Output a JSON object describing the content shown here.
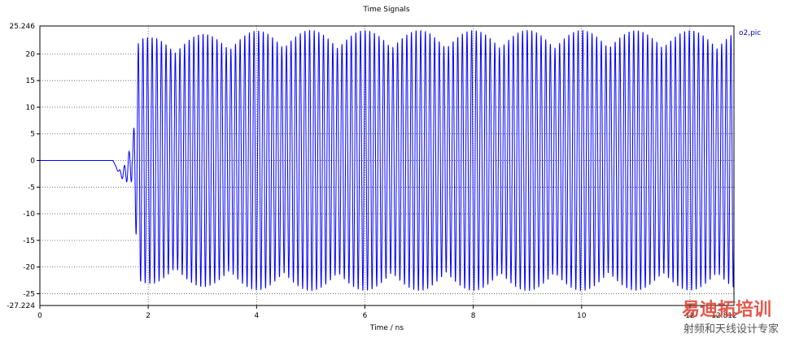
{
  "chart_data": {
    "type": "line",
    "title": "Time Signals",
    "xlabel": "Time / ns",
    "ylabel": "",
    "xlim": [
      0,
      12.812
    ],
    "ylim": [
      -27.224,
      25.246
    ],
    "x_ticks": [
      "0",
      "2",
      "4",
      "6",
      "8",
      "10",
      "12"
    ],
    "x_tick_values": [
      0,
      2,
      4,
      6,
      8,
      10,
      12
    ],
    "x_end_label": "12.812",
    "y_ticks": [
      "20",
      "15",
      "10",
      "5",
      "0",
      "-5",
      "-10",
      "-15",
      "-20",
      "-25"
    ],
    "y_tick_values": [
      20,
      15,
      10,
      5,
      0,
      -5,
      -10,
      -15,
      -20,
      -25
    ],
    "y_top_label": "25.246",
    "y_bottom_label": "-27.224",
    "grid": true,
    "legend_position": "top-right",
    "series": [
      {
        "name": "o2,pic",
        "color": "#0000ff",
        "description_points": {
          "flat_until": 1.35,
          "dip_at": 1.6,
          "onset": 1.7,
          "settled_amplitude": 24.5,
          "envelope_min": 20,
          "end": 12.812
        }
      }
    ]
  },
  "watermark": {
    "brand": "易迪拓培训",
    "tagline": "射频和天线设计专家"
  }
}
